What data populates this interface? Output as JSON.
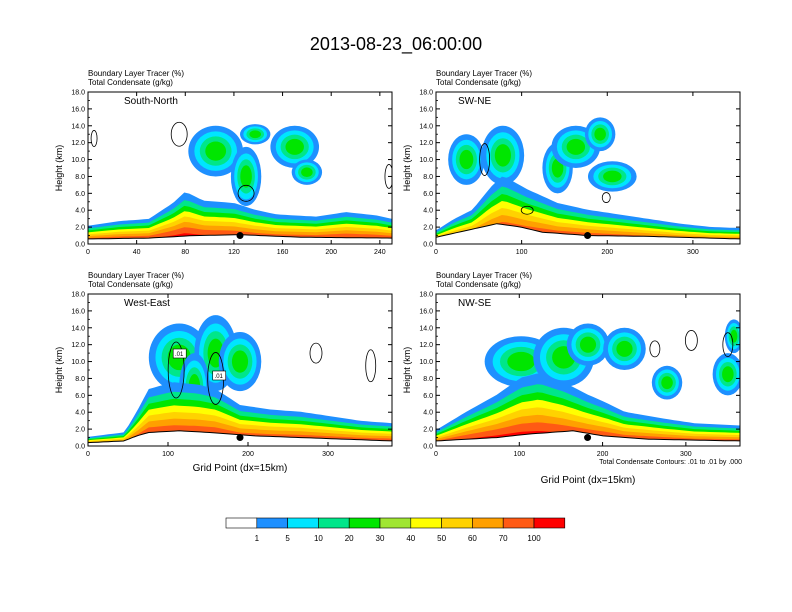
{
  "title": "2013-08-23_06:00:00",
  "panel_label_line1": "Boundary Layer Tracer   (%)",
  "panel_label_line2": "Total Condensate   (g/kg)",
  "contour_note": "Total Condensate Contours: .01 to .01 by .000",
  "colorbar": {
    "colors": [
      "#ffffff",
      "#1e90ff",
      "#00e5ff",
      "#00e68a",
      "#00e600",
      "#a0e632",
      "#ffff00",
      "#ffd200",
      "#ffa000",
      "#ff5a14",
      "#ff0000"
    ],
    "labels": [
      "1",
      "5",
      "10",
      "20",
      "30",
      "40",
      "50",
      "60",
      "70",
      "100"
    ]
  },
  "chart_data": [
    {
      "type": "heatmap",
      "panel": "South-North",
      "name": "South-North",
      "xlabel": "",
      "ylabel": "Height (km)",
      "xlim": [
        0,
        250
      ],
      "ylim": [
        0,
        18
      ],
      "xticks": [
        "0",
        "40",
        "80",
        "120",
        "160",
        "200",
        "240"
      ],
      "yticks": [
        "0.0",
        "2.0",
        "4.0",
        "6.0",
        "8.0",
        "10.0",
        "12.0",
        "14.0",
        "16.0",
        "18.0"
      ],
      "marker": {
        "x": 125,
        "y": 1.0
      },
      "annotations": []
    },
    {
      "type": "heatmap",
      "panel": "SW-NE",
      "name": "SW-NE",
      "xlabel": "",
      "ylabel": "Height (km)",
      "xlim": [
        0,
        355
      ],
      "ylim": [
        0,
        18
      ],
      "xticks": [
        "0",
        "100",
        "200",
        "300"
      ],
      "yticks": [
        "0.0",
        "2.0",
        "4.0",
        "6.0",
        "8.0",
        "10.0",
        "12.0",
        "14.0",
        "16.0",
        "18.0"
      ],
      "marker": {
        "x": 177,
        "y": 1.0
      },
      "annotations": []
    },
    {
      "type": "heatmap",
      "panel": "West-East",
      "name": "West-East",
      "xlabel": "Grid Point (dx=15km)",
      "ylabel": "Height (km)",
      "xlim": [
        0,
        380
      ],
      "ylim": [
        0,
        18
      ],
      "xticks": [
        "0",
        "100",
        "200",
        "300"
      ],
      "yticks": [
        "0.0",
        "2.0",
        "4.0",
        "6.0",
        "8.0",
        "10.0",
        "12.0",
        "14.0",
        "16.0",
        "18.0"
      ],
      "marker": {
        "x": 190,
        "y": 1.0
      },
      "annotations": [
        ".01",
        ".01"
      ]
    },
    {
      "type": "heatmap",
      "panel": "NW-SE",
      "name": "NW-SE",
      "xlabel": "Grid Point (dx=15km)",
      "ylabel": "Height (km)",
      "xlim": [
        0,
        365
      ],
      "ylim": [
        0,
        18
      ],
      "xticks": [
        "0",
        "100",
        "200",
        "300"
      ],
      "yticks": [
        "0.0",
        "2.0",
        "4.0",
        "6.0",
        "8.0",
        "10.0",
        "12.0",
        "14.0",
        "16.0",
        "18.0"
      ],
      "marker": {
        "x": 182,
        "y": 1.0
      },
      "annotations": []
    }
  ]
}
